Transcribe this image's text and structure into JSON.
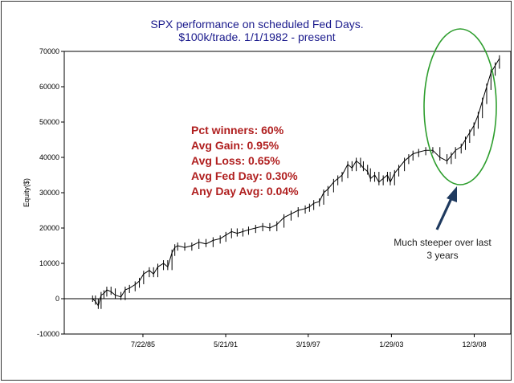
{
  "chart_data": {
    "type": "line",
    "title": [
      "SPX performance on scheduled Fed Days.",
      "$100k/trade.  1/1/1982 - present"
    ],
    "xlabel": "",
    "ylabel": "Equity($)",
    "ylim": [
      -10000,
      70000
    ],
    "yticks": [
      -10000,
      0,
      10000,
      20000,
      30000,
      40000,
      50000,
      60000,
      70000
    ],
    "xlim": [
      1980.0,
      2011.5
    ],
    "xticks": [
      {
        "label": "7/22/85",
        "value": 1985.55
      },
      {
        "label": "5/21/91",
        "value": 1991.39
      },
      {
        "label": "3/19/97",
        "value": 1997.21
      },
      {
        "label": "1/29/03",
        "value": 2003.08
      },
      {
        "label": "12/3/08",
        "value": 2008.92
      }
    ],
    "grid": false,
    "series": [
      {
        "name": "Equity",
        "style": "high-low bars",
        "points": [
          [
            1982.0,
            0
          ],
          [
            1982.2,
            -800
          ],
          [
            1982.4,
            -2000
          ],
          [
            1982.6,
            1000
          ],
          [
            1982.8,
            1500
          ],
          [
            1983.0,
            2500
          ],
          [
            1983.3,
            2000
          ],
          [
            1983.6,
            1000
          ],
          [
            1984.0,
            500
          ],
          [
            1984.3,
            2500
          ],
          [
            1984.6,
            3000
          ],
          [
            1985.0,
            4000
          ],
          [
            1985.3,
            5000
          ],
          [
            1985.6,
            7000
          ],
          [
            1986.0,
            8000
          ],
          [
            1986.3,
            7000
          ],
          [
            1986.6,
            9000
          ],
          [
            1987.0,
            10000
          ],
          [
            1987.3,
            9000
          ],
          [
            1987.6,
            13000
          ],
          [
            1987.8,
            14500
          ],
          [
            1988.0,
            15000
          ],
          [
            1988.5,
            14500
          ],
          [
            1989.0,
            15000
          ],
          [
            1989.5,
            16000
          ],
          [
            1990.0,
            15500
          ],
          [
            1990.5,
            16500
          ],
          [
            1991.0,
            17000
          ],
          [
            1991.4,
            18000
          ],
          [
            1991.8,
            19000
          ],
          [
            1992.2,
            18500
          ],
          [
            1992.6,
            19000
          ],
          [
            1993.0,
            19500
          ],
          [
            1993.5,
            20000
          ],
          [
            1994.0,
            20500
          ],
          [
            1994.5,
            20000
          ],
          [
            1995.0,
            21000
          ],
          [
            1995.5,
            23000
          ],
          [
            1996.0,
            24000
          ],
          [
            1996.5,
            25000
          ],
          [
            1997.0,
            25500
          ],
          [
            1997.3,
            26000
          ],
          [
            1997.6,
            27000
          ],
          [
            1998.0,
            27500
          ],
          [
            1998.3,
            30000
          ],
          [
            1998.6,
            31000
          ],
          [
            1999.0,
            33000
          ],
          [
            1999.3,
            34000
          ],
          [
            1999.6,
            35000
          ],
          [
            2000.0,
            38000
          ],
          [
            2000.3,
            37000
          ],
          [
            2000.6,
            39000
          ],
          [
            2000.9,
            38000
          ],
          [
            2001.1,
            37000
          ],
          [
            2001.4,
            36000
          ],
          [
            2001.6,
            34000
          ],
          [
            2001.9,
            35000
          ],
          [
            2002.2,
            33000
          ],
          [
            2002.5,
            34000
          ],
          [
            2002.8,
            35000
          ],
          [
            2003.0,
            33000
          ],
          [
            2003.3,
            35500
          ],
          [
            2003.6,
            37000
          ],
          [
            2004.0,
            39000
          ],
          [
            2004.3,
            40000
          ],
          [
            2004.6,
            41000
          ],
          [
            2005.0,
            41500
          ],
          [
            2005.5,
            42000
          ],
          [
            2006.0,
            42000
          ],
          [
            2006.5,
            40000
          ],
          [
            2007.0,
            39000
          ],
          [
            2007.3,
            40500
          ],
          [
            2007.6,
            42000
          ],
          [
            2008.0,
            43000
          ],
          [
            2008.3,
            45000
          ],
          [
            2008.6,
            47000
          ],
          [
            2008.9,
            49000
          ],
          [
            2009.2,
            52000
          ],
          [
            2009.5,
            56000
          ],
          [
            2009.8,
            60000
          ],
          [
            2010.1,
            64000
          ],
          [
            2010.4,
            66000
          ],
          [
            2010.7,
            68000
          ]
        ]
      }
    ],
    "annotations": {
      "stats": [
        "Pct winners: 60%",
        "Avg Gain: 0.95%",
        "Avg Loss: 0.65%",
        "Avg Fed Day: 0.30%",
        "Any Day Avg: 0.04%"
      ],
      "callout": [
        "Much steeper over last",
        "3 years"
      ]
    },
    "colors": {
      "title": "#1a1a8c",
      "stats": "#b01f1f",
      "ellipse": "#2e9e2e",
      "arrow": "#1f3a5f",
      "series": "#000000"
    }
  }
}
